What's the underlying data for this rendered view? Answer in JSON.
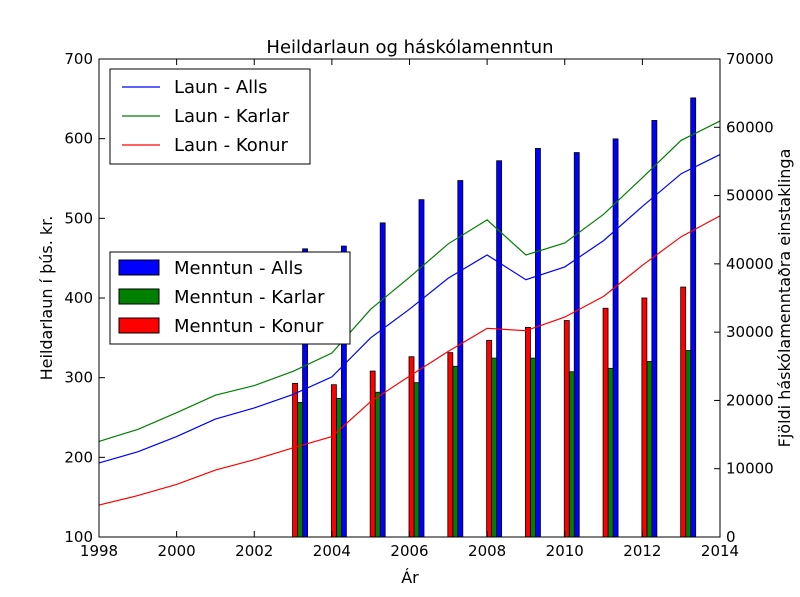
{
  "chart_data": {
    "type": "bar+line",
    "title": "Heildarlaun og háskólamenntun",
    "xlabel": "Ár",
    "ylabel_left": "Heildarlaun í þús. kr.",
    "ylabel_right": "Fjöldi háskólamenntaðra einstaklinga",
    "xlim": [
      1998,
      2014
    ],
    "ylim_left": [
      100,
      700
    ],
    "ylim_right": [
      0,
      70000
    ],
    "x_ticks": [
      "1998",
      "2000",
      "2002",
      "2004",
      "2006",
      "2008",
      "2010",
      "2012",
      "2014"
    ],
    "y_left_ticks": [
      "100",
      "200",
      "300",
      "400",
      "500",
      "600",
      "700"
    ],
    "y_right_ticks": [
      "0",
      "10000",
      "20000",
      "30000",
      "40000",
      "50000",
      "60000",
      "70000"
    ],
    "grid": false,
    "line_legend_position": "top-left",
    "bar_legend_position": "center-left",
    "lines": [
      {
        "name": "Laun - Alls",
        "color": "#0000ff",
        "x": [
          1998,
          1999,
          2000,
          2001,
          2002,
          2003,
          2004,
          2005,
          2006,
          2007,
          2008,
          2009,
          2010,
          2011,
          2012,
          2013,
          2014
        ],
        "y": [
          193,
          207,
          226,
          248,
          262,
          279,
          301,
          350,
          386,
          425,
          454,
          423,
          439,
          472,
          515,
          556,
          580
        ]
      },
      {
        "name": "Laun - Karlar",
        "color": "#008000",
        "x": [
          1998,
          1999,
          2000,
          2001,
          2002,
          2003,
          2004,
          2005,
          2006,
          2007,
          2008,
          2009,
          2010,
          2011,
          2012,
          2013,
          2014
        ],
        "y": [
          220,
          235,
          256,
          278,
          290,
          308,
          331,
          386,
          426,
          468,
          498,
          454,
          469,
          505,
          551,
          598,
          622
        ]
      },
      {
        "name": "Laun - Konur",
        "color": "#ff0000",
        "x": [
          1998,
          1999,
          2000,
          2001,
          2002,
          2003,
          2004,
          2005,
          2006,
          2007,
          2008,
          2009,
          2010,
          2011,
          2012,
          2013,
          2014
        ],
        "y": [
          140,
          152,
          166,
          184,
          197,
          212,
          226,
          270,
          302,
          333,
          362,
          359,
          376,
          402,
          441,
          477,
          503
        ]
      }
    ],
    "bars": {
      "categories": [
        2003,
        2004,
        2005,
        2006,
        2007,
        2008,
        2009,
        2010,
        2011,
        2012,
        2013
      ],
      "series": [
        {
          "name": "Menntun - Alls",
          "color": "#0000ff",
          "values": [
            42200,
            42600,
            46000,
            49400,
            52200,
            55100,
            56900,
            56300,
            58300,
            61000,
            64300
          ]
        },
        {
          "name": "Menntun - Karlar",
          "color": "#008000",
          "values": [
            19700,
            20300,
            21200,
            22600,
            25000,
            26200,
            26200,
            24200,
            24700,
            25700,
            27300
          ]
        },
        {
          "name": "Menntun - Konur",
          "color": "#ff0000",
          "values": [
            22500,
            22300,
            24300,
            26400,
            27000,
            28800,
            30700,
            31700,
            33500,
            35000,
            36600
          ]
        }
      ]
    }
  }
}
